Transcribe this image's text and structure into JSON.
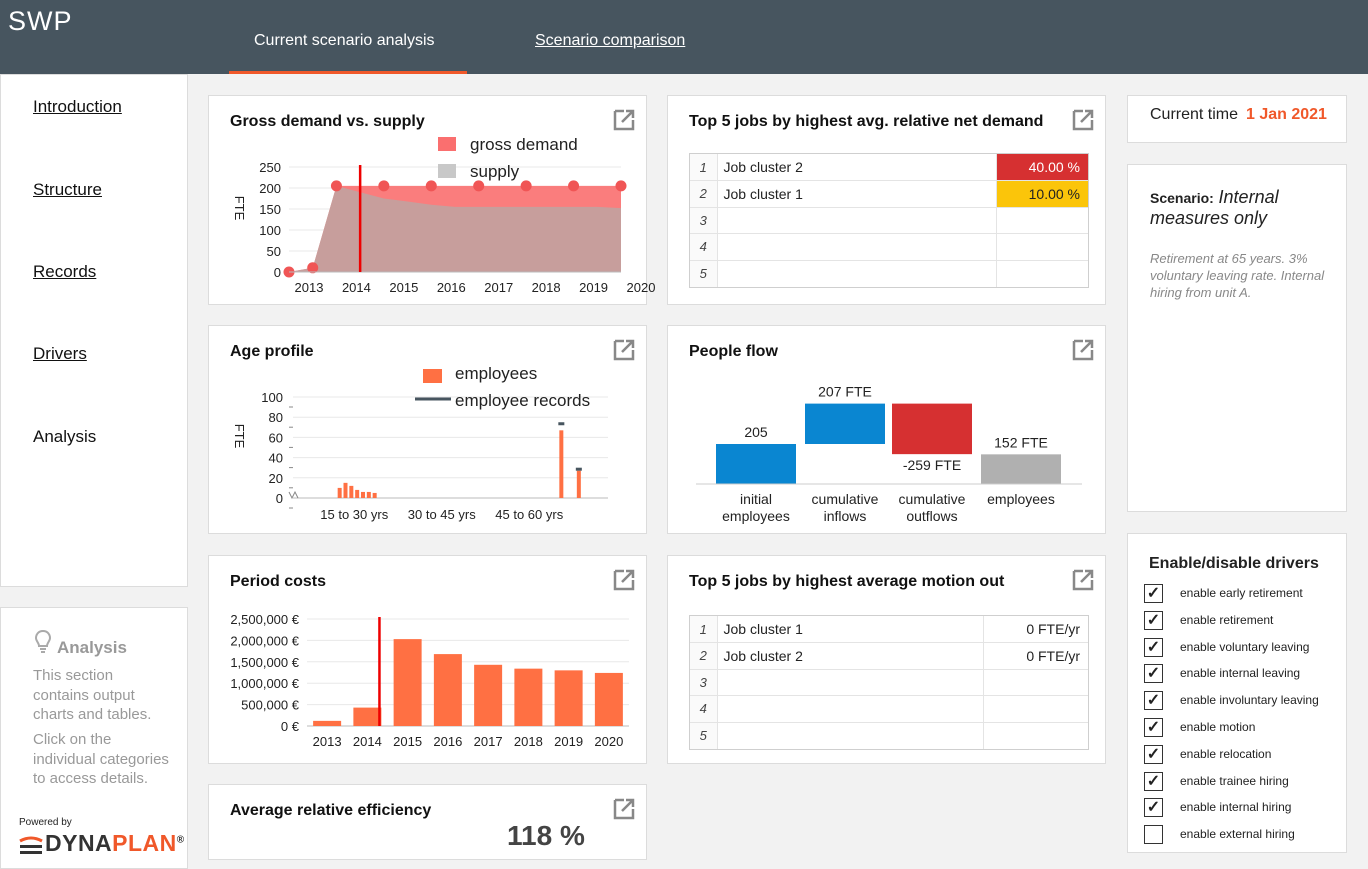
{
  "app": {
    "title": "SWP"
  },
  "tabs": [
    {
      "label": "Current scenario analysis",
      "active": true
    },
    {
      "label": "Scenario comparison",
      "active": false
    }
  ],
  "sidebar": {
    "items": [
      {
        "label": "Introduction"
      },
      {
        "label": "Structure"
      },
      {
        "label": "Records"
      },
      {
        "label": "Drivers"
      },
      {
        "label": "Analysis"
      }
    ]
  },
  "info": {
    "title": "Analysis",
    "text1": "This section contains output charts and tables.",
    "text2": "Click on the individual categories to access details.",
    "powered_by": "Powered by",
    "logo_a": "DYNA",
    "logo_b": "PLAN",
    "logo_mark": "®"
  },
  "colors": {
    "accent": "#f0582a",
    "topbar": "#47555f",
    "bar": "#ff7043",
    "demand": "#fa6f6f",
    "supply": "#c8c8c8",
    "blue": "#0a86d1",
    "red": "#d63031",
    "gray": "#b0b0b0"
  },
  "charts": {
    "gross": {
      "title": "Gross demand vs. supply",
      "legend": [
        "gross demand",
        "supply"
      ]
    },
    "age": {
      "title": "Age profile",
      "legend": [
        "employees",
        "employee records"
      ]
    },
    "costs": {
      "title": "Period costs"
    },
    "efficiency": {
      "title": "Average relative efficiency",
      "value": "118 %"
    },
    "jobs_demand": {
      "title": "Top 5 jobs by highest avg. relative net demand",
      "rows": [
        {
          "rank": "1",
          "job": "Job cluster 2",
          "value": "40.00 %"
        },
        {
          "rank": "2",
          "job": "Job cluster 1",
          "value": "10.00 %"
        },
        {
          "rank": "3",
          "job": "",
          "value": ""
        },
        {
          "rank": "4",
          "job": "",
          "value": ""
        },
        {
          "rank": "5",
          "job": "",
          "value": ""
        }
      ]
    },
    "people_flow": {
      "title": "People flow"
    },
    "jobs_motion": {
      "title": "Top 5 jobs by highest average motion out",
      "rows": [
        {
          "rank": "1",
          "job": "Job cluster 1",
          "value": "0 FTE/yr"
        },
        {
          "rank": "2",
          "job": "Job cluster 2",
          "value": "0 FTE/yr"
        },
        {
          "rank": "3",
          "job": "",
          "value": ""
        },
        {
          "rank": "4",
          "job": "",
          "value": ""
        },
        {
          "rank": "5",
          "job": "",
          "value": ""
        }
      ]
    }
  },
  "time": {
    "label": "Current time",
    "value": "1 Jan 2021"
  },
  "scenario": {
    "label": "Scenario:",
    "name": "Internal measures only",
    "description": "Retirement at 65 years. 3% voluntary leaving rate. Internal hiring from unit A."
  },
  "drivers": {
    "title": "Enable/disable drivers",
    "items": [
      {
        "label": "enable early retirement",
        "checked": true
      },
      {
        "label": "enable retirement",
        "checked": true
      },
      {
        "label": "enable voluntary leaving",
        "checked": true
      },
      {
        "label": "enable internal leaving",
        "checked": true
      },
      {
        "label": "enable involuntary leaving",
        "checked": true
      },
      {
        "label": "enable motion",
        "checked": true
      },
      {
        "label": "enable relocation",
        "checked": true
      },
      {
        "label": "enable trainee hiring",
        "checked": true
      },
      {
        "label": "enable internal hiring",
        "checked": true
      },
      {
        "label": "enable external hiring",
        "checked": false
      }
    ]
  },
  "chart_data": [
    {
      "type": "area",
      "title": "Gross demand vs. supply",
      "ylabel": "FTE",
      "x": [
        2013,
        2013.5,
        2014,
        2014.5,
        2015,
        2015.5,
        2016,
        2016.5,
        2017,
        2017.5,
        2018,
        2018.5,
        2019,
        2019.5,
        2020
      ],
      "x_ticks": [
        "2013",
        "2014",
        "2015",
        "2016",
        "2017",
        "2018",
        "2019",
        "2020"
      ],
      "ylim": [
        0,
        250
      ],
      "y_ticks": [
        "0",
        "50",
        "100",
        "150",
        "200",
        "250"
      ],
      "marker": 2014.5,
      "series": [
        {
          "name": "gross demand",
          "values": [
            0,
            10,
            205,
            205,
            205,
            205,
            205,
            205,
            205,
            205,
            205,
            205,
            205,
            205,
            205
          ]
        },
        {
          "name": "supply",
          "values": [
            0,
            10,
            205,
            190,
            175,
            168,
            160,
            155,
            155,
            155,
            155,
            155,
            155,
            155,
            152
          ]
        }
      ]
    },
    {
      "type": "bar",
      "title": "Age profile",
      "ylabel": "FTE",
      "x_ticks": [
        "15 to 30 yrs",
        "30 to 45 yrs",
        "45 to 60 yrs"
      ],
      "ylim": [
        0,
        100
      ],
      "y_ticks": [
        "0",
        "20",
        "40",
        "60",
        "80",
        "100"
      ],
      "series": [
        {
          "name": "employees",
          "ages": [
            20,
            21,
            22,
            23,
            24,
            25,
            26,
            58,
            61
          ],
          "values": [
            10,
            15,
            12,
            8,
            6,
            6,
            5,
            67,
            27
          ]
        },
        {
          "name": "employee records",
          "ages": [
            58,
            61
          ],
          "values": [
            75,
            30
          ]
        }
      ]
    },
    {
      "type": "bar",
      "title": "Period costs",
      "categories": [
        "2013",
        "2014",
        "2015",
        "2016",
        "2017",
        "2018",
        "2019",
        "2020"
      ],
      "values": [
        120000,
        430000,
        2030000,
        1680000,
        1430000,
        1340000,
        1300000,
        1240000
      ],
      "ylim": [
        0,
        2500000
      ],
      "y_ticks": [
        "0 €",
        "500,000 €",
        "1,000,000 €",
        "1,500,000 €",
        "2,000,000 €",
        "2,500,000 €"
      ],
      "marker": 2014.5
    },
    {
      "type": "bar",
      "title": "People flow",
      "categories": [
        "initial employees",
        "cumulative inflows",
        "cumulative outflows",
        "employees"
      ],
      "category_lines": [
        [
          "initial",
          "employees"
        ],
        [
          "cumulative",
          "inflows"
        ],
        [
          "cumulative",
          "outflows"
        ],
        [
          "employees"
        ]
      ],
      "values": [
        205,
        207,
        -259,
        152
      ],
      "labels": [
        "205",
        "207 FTE",
        "-259 FTE",
        "152 FTE"
      ]
    }
  ]
}
